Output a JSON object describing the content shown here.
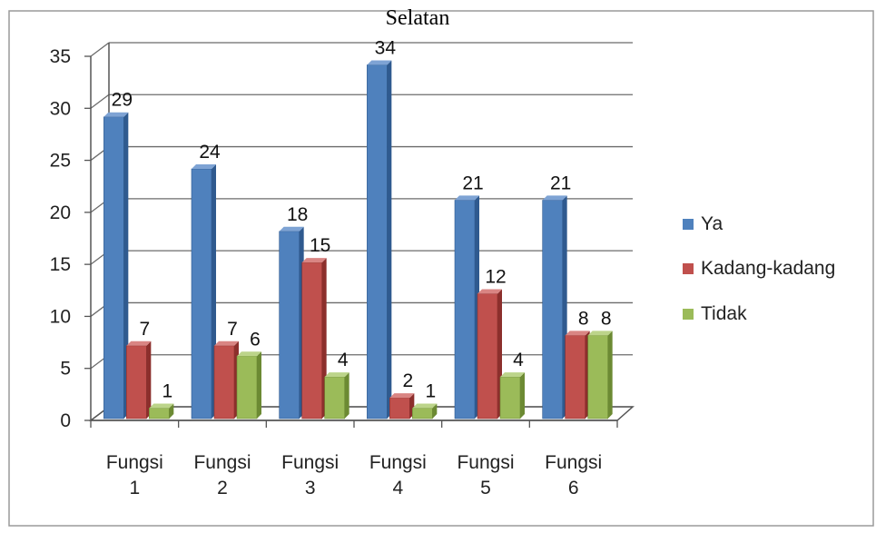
{
  "chart_data": {
    "type": "bar",
    "title": "Selatan",
    "categories": [
      [
        "Fungsi",
        "1"
      ],
      [
        "Fungsi",
        "2"
      ],
      [
        "Fungsi",
        "3"
      ],
      [
        "Fungsi",
        "4"
      ],
      [
        "Fungsi",
        "5"
      ],
      [
        "Fungsi",
        "6"
      ]
    ],
    "series": [
      {
        "name": "Ya",
        "values": [
          29,
          24,
          18,
          34,
          21,
          21
        ],
        "color": "#4f81bd",
        "side": "#2f5a8f",
        "top": "#7ea3d4"
      },
      {
        "name": "Kadang-kadang",
        "values": [
          7,
          7,
          15,
          2,
          12,
          8
        ],
        "color": "#c0504d",
        "side": "#8c2f2c",
        "top": "#d98583"
      },
      {
        "name": "Tidak",
        "values": [
          1,
          6,
          4,
          1,
          4,
          8
        ],
        "color": "#9bbb59",
        "side": "#6c8a33",
        "top": "#bcd48a"
      }
    ],
    "ylim": [
      0,
      35
    ],
    "yticks": [
      0,
      5,
      10,
      15,
      20,
      25,
      30,
      35
    ],
    "grid": true,
    "legend": "right",
    "xlabel": "",
    "ylabel": ""
  }
}
